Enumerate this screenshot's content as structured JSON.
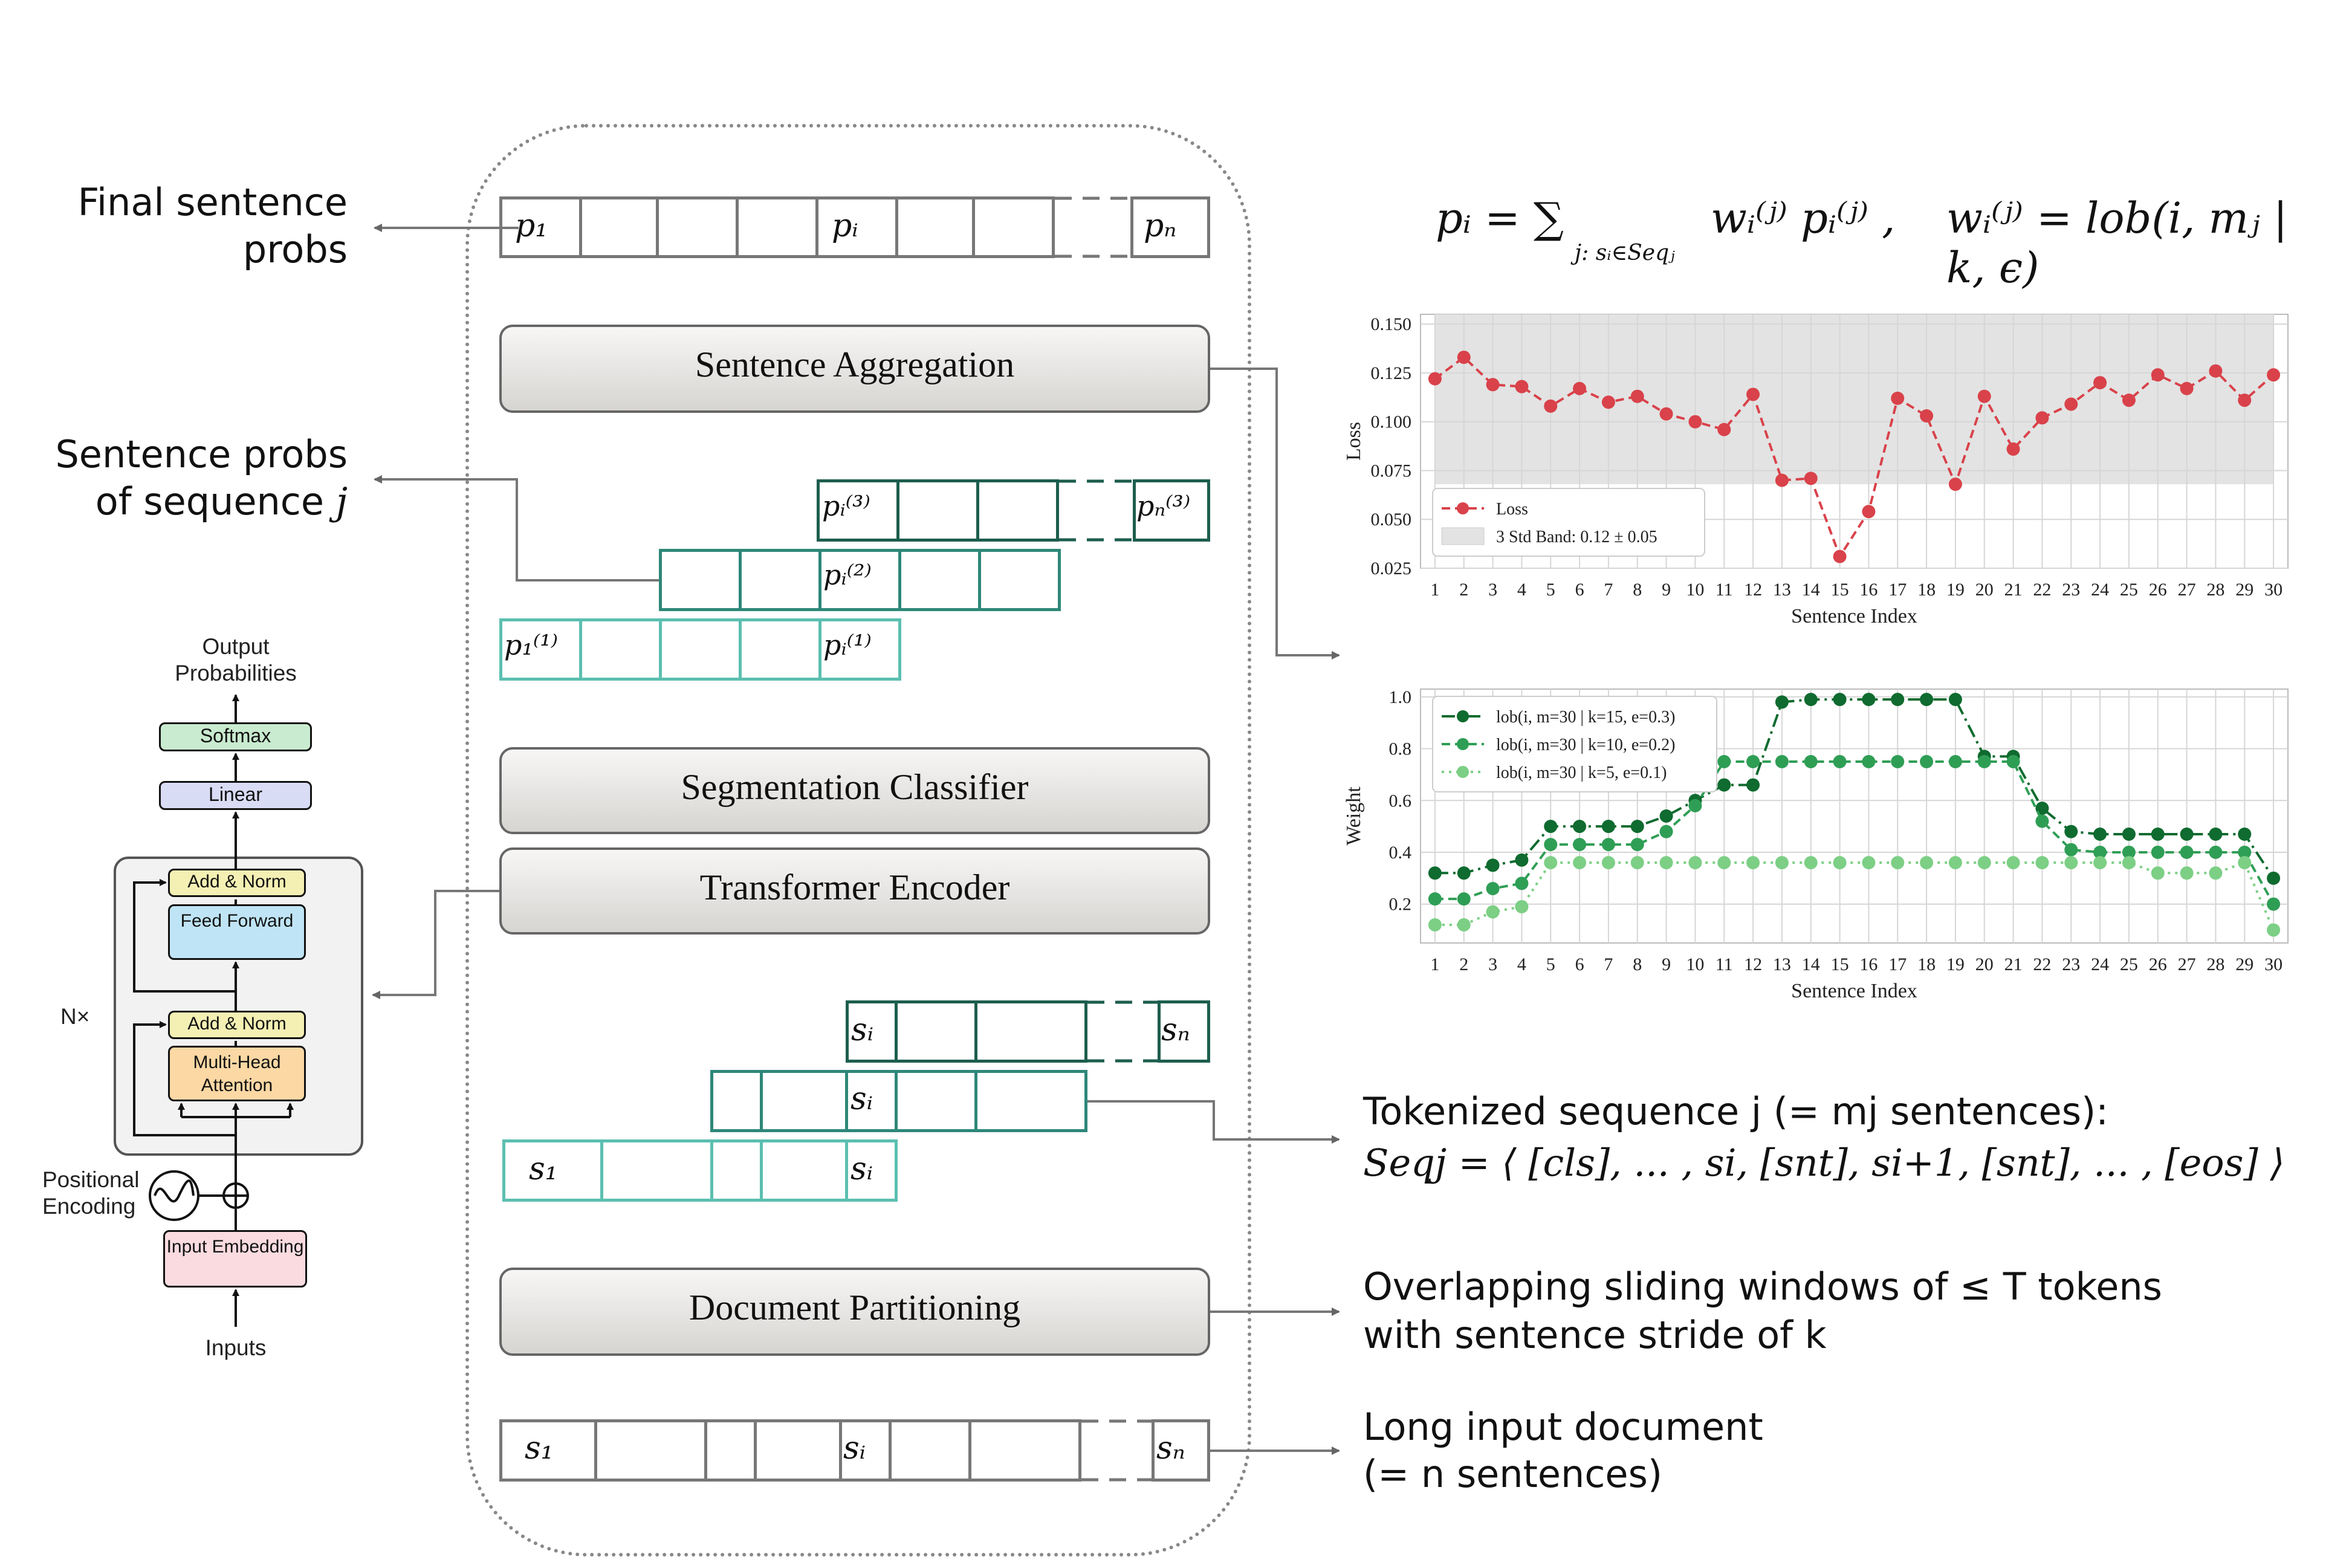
{
  "labels": {
    "final_probs": "Final sentence probs",
    "seq_probs_text": "Sentence probs of sequence",
    "seq_probs_var": "j",
    "tokenized_header": "Tokenized sequence j (= mj sentences):",
    "tokenized_formula": "Seqj = ⟨ [cls], ... , si, [snt], si+1, [snt], ... , [eos] ⟩",
    "sliding_line1": "Overlapping sliding windows of ≤ T tokens",
    "sliding_line2": "with sentence stride of k",
    "long_line1": "Long input document",
    "long_line2": "(= n sentences)"
  },
  "boxes": {
    "aggregation": "Sentence Aggregation",
    "segmentation": "Segmentation Classifier",
    "encoder": "Transformer Encoder",
    "partitioning": "Document Partitioning"
  },
  "formula": {
    "lhs": "pᵢ = ∑",
    "sub": "j: sᵢ∈Seqⱼ",
    "rhs": "wᵢ⁽ʲ⁾ pᵢ⁽ʲ⁾ ,",
    "weight_def": "wᵢ⁽ʲ⁾ = lob(i, mⱼ | k, ϵ)"
  },
  "cells": {
    "p1": "p₁",
    "pi": "pᵢ",
    "pn": "pₙ",
    "pi3": "pᵢ⁽³⁾",
    "pn3": "pₙ⁽³⁾",
    "pi2": "pᵢ⁽²⁾",
    "p11": "p₁⁽¹⁾",
    "pi1": "pᵢ⁽¹⁾",
    "si": "sᵢ",
    "sn": "sₙ",
    "s1": "s₁"
  },
  "transformer": {
    "output_label": "Output Probabilities",
    "softmax": "Softmax",
    "linear": "Linear",
    "add_norm": "Add & Norm",
    "feed_forward": "Feed Forward",
    "multi_head": "Multi-Head Attention",
    "nx": "N×",
    "positional": "Positional Encoding",
    "input_embedding": "Input Embedding",
    "inputs": "Inputs"
  },
  "chart_data": [
    {
      "type": "line",
      "xlabel": "Sentence Index",
      "ylabel": "Loss",
      "x": [
        1,
        2,
        3,
        4,
        5,
        6,
        7,
        8,
        9,
        10,
        11,
        12,
        13,
        14,
        15,
        16,
        17,
        18,
        19,
        20,
        21,
        22,
        23,
        24,
        25,
        26,
        27,
        28,
        29,
        30
      ],
      "xlim": [
        0.5,
        30.5
      ],
      "ylim": [
        0.025,
        0.155
      ],
      "yticks": [
        "0.025",
        "0.050",
        "0.075",
        "0.100",
        "0.125",
        "0.150"
      ],
      "grid": true,
      "legend": "bottom-left",
      "band": {
        "label": "3 Std Band: 0.12 ± 0.05",
        "low": 0.068,
        "high": 0.166,
        "color": "#e3e3e3"
      },
      "series": [
        {
          "name": "Loss",
          "color": "#d9424a",
          "values": [
            0.122,
            0.133,
            0.119,
            0.118,
            0.108,
            0.117,
            0.11,
            0.113,
            0.104,
            0.1,
            0.096,
            0.114,
            0.07,
            0.071,
            0.031,
            0.054,
            0.112,
            0.103,
            0.068,
            0.113,
            0.086,
            0.102,
            0.109,
            0.12,
            0.111,
            0.124,
            0.117,
            0.126,
            0.111,
            0.124
          ]
        }
      ]
    },
    {
      "type": "line",
      "xlabel": "Sentence Index",
      "ylabel": "Weight",
      "x": [
        1,
        2,
        3,
        4,
        5,
        6,
        7,
        8,
        9,
        10,
        11,
        12,
        13,
        14,
        15,
        16,
        17,
        18,
        19,
        20,
        21,
        22,
        23,
        24,
        25,
        26,
        27,
        28,
        29,
        30
      ],
      "xlim": [
        0.5,
        30.5
      ],
      "ylim": [
        0.05,
        1.03
      ],
      "yticks": [
        "0.2",
        "0.4",
        "0.6",
        "0.8",
        "1.0"
      ],
      "grid": true,
      "legend": "top-left",
      "series": [
        {
          "name": "lob(i, m=30 | k=15, e=0.3)",
          "color": "#0f6b2f",
          "style": "dashdot",
          "values": [
            0.32,
            0.32,
            0.35,
            0.37,
            0.5,
            0.5,
            0.5,
            0.5,
            0.54,
            0.6,
            0.66,
            0.66,
            0.98,
            0.99,
            0.99,
            0.99,
            0.99,
            0.99,
            0.99,
            0.77,
            0.77,
            0.57,
            0.48,
            0.47,
            0.47,
            0.47,
            0.47,
            0.47,
            0.47,
            0.3
          ]
        },
        {
          "name": "lob(i, m=30 | k=10, e=0.2)",
          "color": "#2f9e55",
          "style": "dashed",
          "values": [
            0.22,
            0.22,
            0.26,
            0.28,
            0.43,
            0.43,
            0.43,
            0.43,
            0.48,
            0.58,
            0.75,
            0.75,
            0.75,
            0.75,
            0.75,
            0.75,
            0.75,
            0.75,
            0.75,
            0.75,
            0.75,
            0.52,
            0.41,
            0.4,
            0.4,
            0.4,
            0.4,
            0.4,
            0.4,
            0.2
          ]
        },
        {
          "name": "lob(i, m=30 | k=5, e=0.1)",
          "color": "#7ccf85",
          "style": "dotted",
          "values": [
            0.12,
            0.12,
            0.17,
            0.19,
            0.36,
            0.36,
            0.36,
            0.36,
            0.36,
            0.36,
            0.36,
            0.36,
            0.36,
            0.36,
            0.36,
            0.36,
            0.36,
            0.36,
            0.36,
            0.36,
            0.36,
            0.36,
            0.36,
            0.36,
            0.36,
            0.32,
            0.32,
            0.32,
            0.36,
            0.1
          ]
        }
      ]
    }
  ]
}
